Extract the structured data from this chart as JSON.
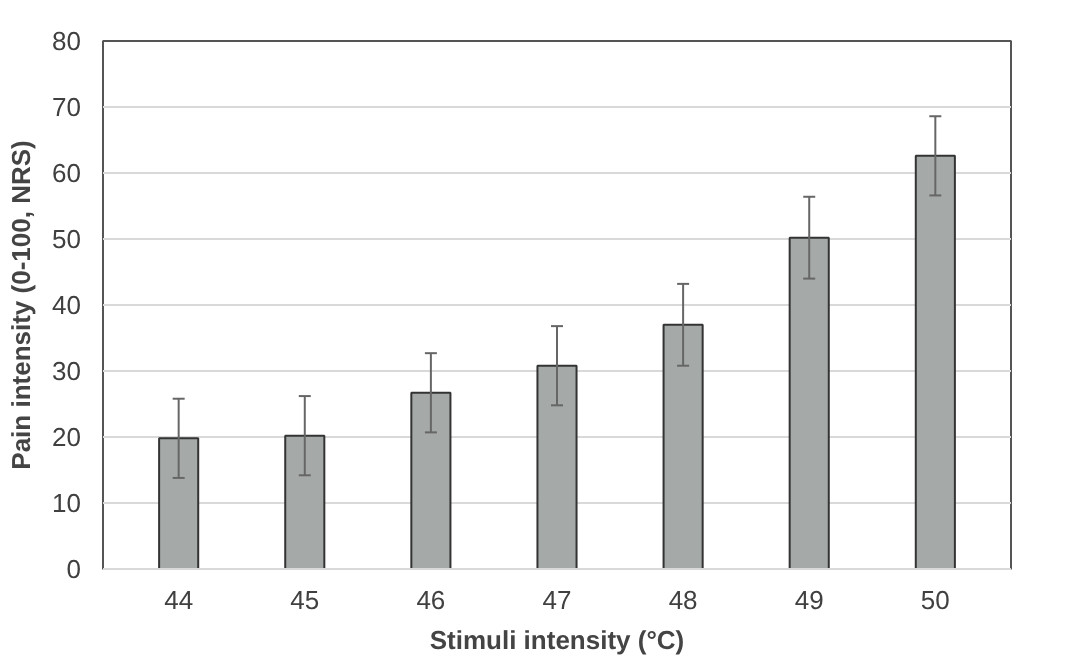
{
  "chart_data": {
    "type": "bar",
    "xlabel": "Stimuli intensity (°C)",
    "ylabel": "Pain intensity (0-100, NRS)",
    "categories": [
      "44",
      "45",
      "46",
      "47",
      "48",
      "49",
      "50"
    ],
    "values": [
      19.8,
      20.2,
      26.7,
      30.8,
      37.0,
      50.2,
      62.6
    ],
    "errors": [
      6,
      6,
      6,
      6,
      6.2,
      6.2,
      6
    ],
    "color": "#a5aaa8",
    "ylim": [
      0,
      80
    ],
    "yticks": [
      0,
      10,
      20,
      30,
      40,
      50,
      60,
      70,
      80
    ],
    "grid": "y"
  }
}
